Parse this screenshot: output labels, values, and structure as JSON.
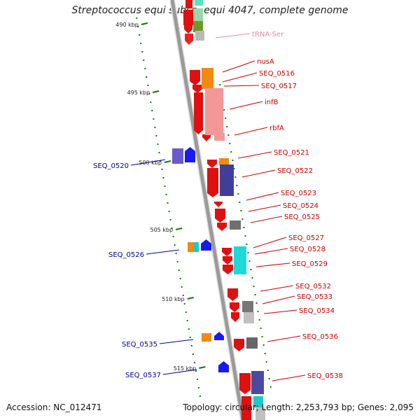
{
  "title": "Streptococcus equi subsp. equi 4047, complete genome",
  "accession": "Accession: NC_012471",
  "topology": "Topology: circular; Length: 2,253,793 bp; Genes: 2,095",
  "colors": {
    "forward_label": "#cc0000",
    "reverse_label": "#000099",
    "trna_label": "#e888a8",
    "backbone": "#9a9a9a",
    "tick": "#0a7a0a"
  },
  "scale_ticks": [
    "490 kbp",
    "495 kbp",
    "500 kbp",
    "505 kbp",
    "510 kbp",
    "515 kbp"
  ],
  "forward_labels": [
    "tRNA-Ser",
    "nusA",
    "SEQ_0516",
    "SEQ_0517",
    "infB",
    "rbfA",
    "SEQ_0521",
    "SEQ_0522",
    "SEQ_0523",
    "SEQ_0524",
    "SEQ_0525",
    "SEQ_0527",
    "SEQ_0528",
    "SEQ_0529",
    "SEQ_0532",
    "SEQ_0533",
    "SEQ_0534",
    "SEQ_0536",
    "SEQ_0538"
  ],
  "reverse_labels": [
    "SEQ_0520",
    "SEQ_0526",
    "SEQ_0535",
    "SEQ_0537"
  ]
}
